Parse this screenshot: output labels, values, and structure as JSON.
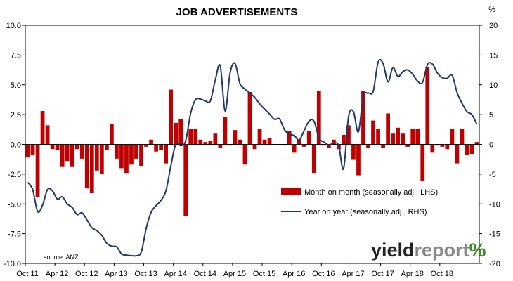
{
  "chart_data": {
    "type": "bar+line",
    "title": "JOB ADVERTISEMENTS",
    "left_unit": "",
    "right_unit": "%",
    "y_left_ticks": [
      "10.0",
      "7.5",
      "5.0",
      "2.5",
      "0.0",
      "-2.5",
      "-5.0",
      "-7.5",
      "-10.0"
    ],
    "y_right_ticks": [
      "20",
      "15",
      "10",
      "5",
      "0",
      "-5",
      "-10",
      "-15",
      "-20"
    ],
    "x_tick_labels": [
      "Oct 11",
      "Apr 12",
      "Oct 12",
      "Apr 13",
      "Oct 13",
      "Apr 14",
      "Oct 14",
      "Apr 15",
      "Oct 15",
      "Apr 16",
      "Oct 16",
      "Apr 17",
      "Oct 17",
      "Apr 18",
      "Oct 18"
    ],
    "ylim_left": [
      -10,
      10
    ],
    "ylim_right": [
      -20,
      20
    ],
    "months_start": "Oct 11",
    "series": [
      {
        "name": "Month on month (seasonally adj., LHS)",
        "type": "bar",
        "axis": "left",
        "color": "#C00000",
        "values": [
          -1.1,
          -0.9,
          -4.4,
          2.8,
          1.6,
          -0.4,
          -0.5,
          -1.9,
          -1.4,
          -1.9,
          -0.4,
          -1.2,
          -3.7,
          -4.1,
          -2.2,
          -2.5,
          -0.5,
          1.7,
          -1.2,
          -2.0,
          -2.4,
          -1.7,
          -1.2,
          -1.8,
          -0.2,
          0.4,
          -0.6,
          -0.5,
          -1.6,
          4.6,
          1.8,
          2.1,
          -6.0,
          1.3,
          1.3,
          0.4,
          0.2,
          0.3,
          0.9,
          -0.3,
          2.3,
          -0.1,
          1.2,
          0.4,
          -1.7,
          4.4,
          -0.4,
          1.3,
          0.4,
          0.5,
          0.0,
          0.0,
          -0.1,
          1.1,
          -0.7,
          0.4,
          -0.2,
          1.1,
          -2.4,
          4.5,
          -0.1,
          -0.3,
          0.4,
          -0.4,
          0.8,
          1.6,
          -1.3,
          -2.6,
          4.5,
          -0.3,
          2.0,
          1.3,
          -0.3,
          2.6,
          0.9,
          1.4,
          0.9,
          -0.2,
          1.3,
          1.3,
          -3.1,
          6.5,
          -0.7,
          -0.1,
          -0.2,
          -0.4,
          1.3,
          -1.6,
          1.3,
          -0.9,
          -0.8,
          0.2
        ]
      },
      {
        "name": "Year on year (seasonally adj., RHS)",
        "type": "line",
        "axis": "right",
        "color": "#1F3864",
        "values": [
          -6.4,
          -7.6,
          -11.3,
          -10.2,
          -7.6,
          -7.8,
          -9.2,
          -8.8,
          -10.0,
          -10.6,
          -11.8,
          -11.5,
          -12.7,
          -14.0,
          -14.5,
          -15.3,
          -16.6,
          -17.1,
          -17.2,
          -18.4,
          -18.6,
          -18.7,
          -18.7,
          -18.1,
          -14.1,
          -11.4,
          -10.3,
          -9.4,
          -7.8,
          -3.6,
          0.1,
          -0.2,
          0.6,
          5.2,
          7.5,
          7.6,
          7.3,
          7.3,
          10.8,
          13.2,
          5.6,
          12.0,
          13.6,
          10.2,
          9.3,
          8.6,
          7.9,
          6.8,
          5.9,
          5.1,
          4.2,
          4.3,
          2.5,
          1.7,
          1.5,
          0.7,
          2.3,
          3.9,
          3.9,
          1.1,
          0.4,
          -0.1,
          0.2,
          -0.2,
          -4.1,
          4.6,
          5.5,
          2.1,
          8.1,
          8.6,
          8.9,
          13.8,
          13.6,
          10.5,
          12.9,
          11.4,
          12.2,
          12.5,
          11.8,
          10.6,
          10.4,
          13.4,
          13.5,
          12.0,
          11.2,
          11.1,
          11.6,
          8.7,
          6.9,
          5.5,
          5.0,
          3.4
        ]
      }
    ],
    "legend": {
      "position": "bottom-right",
      "items": [
        "Month on month (seasonally adj., LHS)",
        "Year on year (seasonally adj., RHS)"
      ]
    },
    "source": "source: ANZ",
    "grid": false
  },
  "logo": {
    "text_dark": "yield",
    "text_light": "report",
    "symbol": "%",
    "dark_color": "#222222",
    "light_color": "#888888",
    "symbol_color": "#3D8C2B"
  }
}
